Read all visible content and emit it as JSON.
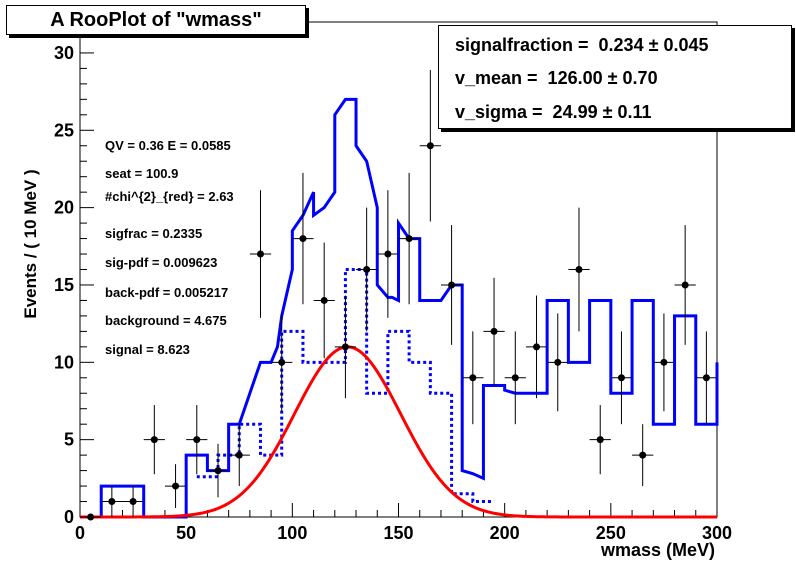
{
  "title": "A RooPlot of \"wmass\"",
  "params": [
    {
      "label": "signalfraction =  0.234",
      "pm": "±",
      "err": "0.045"
    },
    {
      "label": "v_mean =  126.00",
      "pm": "±",
      "err": "0.70"
    },
    {
      "label": "v_sigma =  24.99",
      "pm": "±",
      "err": "0.11"
    }
  ],
  "stats": [
    "QV = 0.36 E = 0.0585",
    "seat = 100.9",
    "#chi^{2}_{red} = 2.63",
    "sigfrac = 0.2335",
    "sig-pdf = 0.009623",
    "back-pdf = 0.005217",
    "background = 4.675",
    "signal = 8.623"
  ],
  "chart_data": {
    "type": "line",
    "xlabel": "wmass (MeV)",
    "ylabel": "Events / ( 10 MeV )",
    "xlim": [
      0,
      300
    ],
    "ylim": [
      0,
      32
    ],
    "x_ticks": [
      0,
      50,
      100,
      150,
      200,
      250,
      300
    ],
    "y_ticks": [
      0,
      5,
      10,
      15,
      20,
      25,
      30
    ],
    "colors": {
      "data": "#000000",
      "total": "#0000ff",
      "signal": "#ff0000"
    },
    "data_points": {
      "x": [
        5,
        15,
        25,
        35,
        45,
        55,
        65,
        75,
        85,
        95,
        105,
        115,
        125,
        135,
        145,
        155,
        165,
        175,
        185,
        195,
        205,
        215,
        225,
        235,
        245,
        255,
        265,
        275,
        285,
        295
      ],
      "y": [
        0,
        1,
        1,
        5,
        2,
        5,
        3,
        4,
        17,
        10,
        18,
        14,
        11,
        16,
        17,
        18,
        24,
        15,
        9,
        12,
        9,
        11,
        10,
        16,
        5,
        9,
        4,
        10,
        15,
        9
      ]
    },
    "total_fit": {
      "x": [
        5,
        10,
        10,
        20,
        30,
        30,
        35,
        40,
        50,
        50,
        52,
        55,
        60,
        60,
        65,
        70,
        70,
        75,
        80,
        85,
        90,
        93,
        95,
        100,
        100,
        105,
        110,
        110,
        115,
        120,
        120,
        125,
        130,
        130,
        135,
        140,
        140,
        145,
        147,
        150,
        150,
        155,
        160,
        160,
        165,
        170,
        175,
        180,
        180,
        185,
        190,
        190,
        195,
        200,
        200,
        205,
        210,
        215,
        220,
        220,
        225,
        230,
        230,
        235,
        240,
        240,
        245,
        250,
        250,
        255,
        260,
        260,
        265,
        270,
        270,
        275,
        280,
        280,
        285,
        290,
        290,
        295,
        300,
        300
      ],
      "y": [
        0,
        0,
        2,
        2,
        2,
        0,
        0,
        0,
        0,
        4,
        4,
        4,
        4,
        3,
        3,
        3,
        6,
        6,
        8,
        10,
        10,
        11,
        13,
        16,
        18.5,
        19.5,
        21,
        19.5,
        20,
        21,
        26,
        27,
        27,
        24,
        23,
        20,
        15,
        14.2,
        14.2,
        14,
        19,
        18,
        18,
        14,
        14,
        14,
        15,
        15,
        3,
        2.8,
        2.5,
        8.5,
        8.5,
        8.5,
        8.2,
        8,
        8,
        8,
        8,
        14,
        14,
        14,
        10,
        10,
        10,
        14,
        14,
        14,
        8,
        8,
        8,
        14,
        14,
        14,
        6,
        6,
        6,
        13,
        13,
        13,
        6,
        6,
        6,
        10
      ]
    },
    "background_component": {
      "x": [
        5,
        10,
        10,
        20,
        30,
        30,
        35,
        40,
        50,
        50,
        55,
        60,
        60,
        65,
        70,
        70,
        75,
        80,
        85,
        90,
        95,
        100,
        100,
        105,
        110,
        110,
        115,
        120,
        120,
        125,
        130,
        130,
        135,
        140,
        140,
        145,
        150,
        150,
        155,
        160,
        160,
        165,
        170,
        170,
        175,
        180,
        180,
        185,
        190,
        190,
        195,
        300
      ],
      "y": [
        0,
        0,
        0,
        0,
        0,
        0,
        0,
        0,
        0,
        0,
        0,
        0,
        0,
        0,
        0,
        0,
        0,
        0,
        0,
        0,
        0,
        0,
        0,
        0,
        0,
        0,
        0,
        0,
        0,
        0,
        0,
        0,
        0,
        0,
        0,
        0,
        0,
        0,
        0,
        0,
        0,
        0,
        0,
        0,
        0,
        0,
        0,
        0,
        0,
        0,
        0,
        0
      ],
      "note_values": {
        "bins_x": [
          60,
          70,
          80,
          90,
          100,
          110,
          120,
          130,
          140,
          150,
          160,
          170,
          180,
          190
        ],
        "bins_y": [
          2.6,
          4,
          6,
          4,
          12,
          10,
          10,
          16,
          8,
          12,
          10,
          8,
          1.5,
          1
        ]
      }
    },
    "signal_curve": {
      "mean": 126.0,
      "sigma": 24.99,
      "peak": 11.0
    }
  }
}
